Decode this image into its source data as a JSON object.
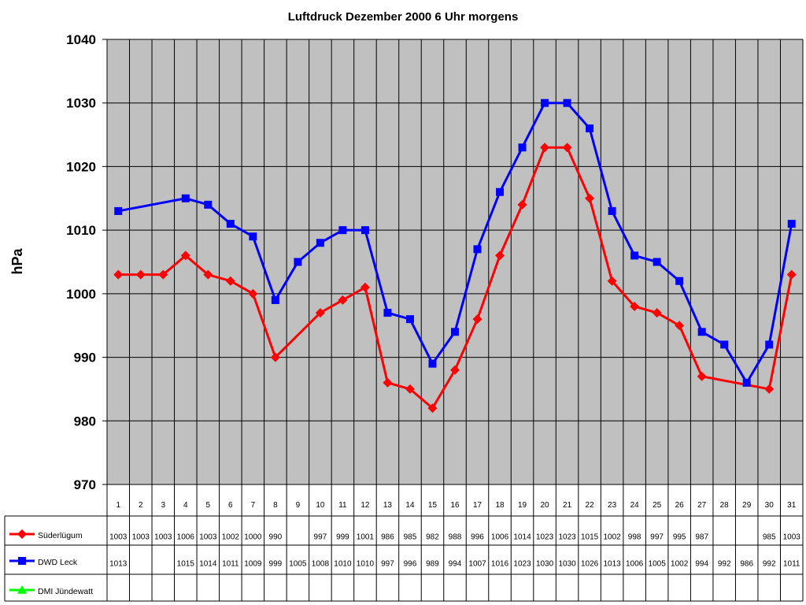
{
  "chart_data": {
    "type": "line",
    "title": "Luftdruck Dezember 2000 6 Uhr morgens",
    "ylabel": "hPa",
    "xlabel": "",
    "ylim": [
      970,
      1040
    ],
    "yticks": [
      970,
      980,
      990,
      1000,
      1010,
      1020,
      1030,
      1040
    ],
    "yticks_text": [
      "970",
      "980",
      "990",
      "1000",
      "1010",
      "1020",
      "1030",
      "1040"
    ],
    "grid": true,
    "legend_placement": "data-table-left",
    "plot_background": "#c0c0c0",
    "categories": [
      "1",
      "2",
      "3",
      "4",
      "5",
      "6",
      "7",
      "8",
      "9",
      "10",
      "11",
      "12",
      "13",
      "14",
      "15",
      "16",
      "17",
      "18",
      "19",
      "20",
      "21",
      "22",
      "23",
      "24",
      "25",
      "26",
      "27",
      "28",
      "29",
      "30",
      "31"
    ],
    "series": [
      {
        "name": "Süderlügum",
        "color": "#ff0000",
        "marker": "diamond",
        "values": [
          1003,
          1003,
          1003,
          1006,
          1003,
          1002,
          1000,
          990,
          null,
          997,
          999,
          1001,
          986,
          985,
          982,
          988,
          996,
          1006,
          1014,
          1023,
          1023,
          1015,
          1002,
          998,
          997,
          995,
          987,
          null,
          null,
          985,
          1003
        ],
        "labels": [
          "1003",
          "1003",
          "1003",
          "1006",
          "1003",
          "1002",
          "1000",
          "990",
          "",
          "997",
          "999",
          "1001",
          "986",
          "985",
          "982",
          "988",
          "996",
          "1006",
          "1014",
          "1023",
          "1023",
          "1015",
          "1002",
          "998",
          "997",
          "995",
          "987",
          "",
          "",
          "985",
          "1003"
        ]
      },
      {
        "name": "DWD Leck",
        "color": "#0000ff",
        "marker": "square",
        "values": [
          1013,
          null,
          null,
          1015,
          1014,
          1011,
          1009,
          999,
          1005,
          1008,
          1010,
          1010,
          997,
          996,
          989,
          994,
          1007,
          1016,
          1023,
          1030,
          1030,
          1026,
          1013,
          1006,
          1005,
          1002,
          994,
          992,
          986,
          992,
          1011
        ],
        "labels": [
          "1013",
          "",
          "",
          "1015",
          "1014",
          "1011",
          "1009",
          "999",
          "1005",
          "1008",
          "1010",
          "1010",
          "997",
          "996",
          "989",
          "994",
          "1007",
          "1016",
          "1023",
          "1030",
          "1030",
          "1026",
          "1013",
          "1006",
          "1005",
          "1002",
          "994",
          "992",
          "986",
          "992",
          "1011"
        ]
      },
      {
        "name": "DMI Jündewatt",
        "color": "#00ff00",
        "marker": "triangle",
        "values": [
          null,
          null,
          null,
          null,
          null,
          null,
          null,
          null,
          null,
          null,
          null,
          null,
          null,
          null,
          null,
          null,
          null,
          null,
          null,
          null,
          null,
          null,
          null,
          null,
          null,
          null,
          null,
          null,
          null,
          null,
          null
        ],
        "labels": [
          "",
          "",
          "",
          "",
          "",
          "",
          "",
          "",
          "",
          "",
          "",
          "",
          "",
          "",
          "",
          "",
          "",
          "",
          "",
          "",
          "",
          "",
          "",
          "",
          "",
          "",
          "",
          "",
          "",
          "",
          ""
        ]
      }
    ]
  }
}
